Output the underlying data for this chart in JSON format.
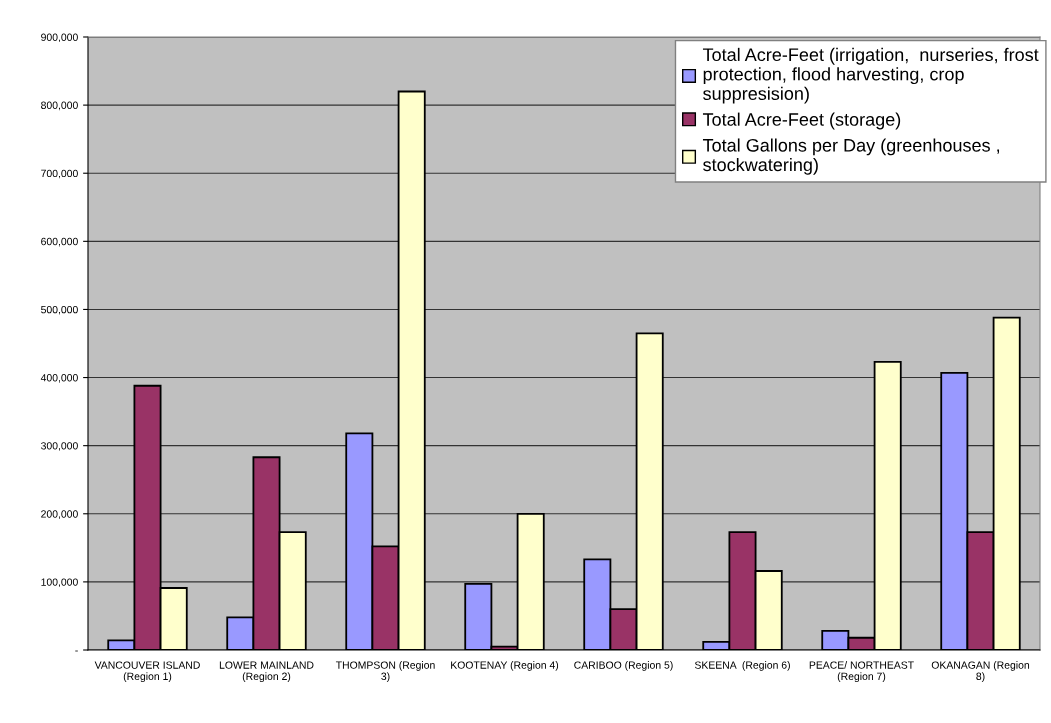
{
  "chart_data": {
    "type": "bar",
    "categories": [
      "VANCOUVER ISLAND\n(Region 1)",
      "LOWER MAINLAND\n(Region 2)",
      "THOMPSON (Region\n3)",
      "KOOTENAY (Region 4)",
      "CARIBOO (Region 5)",
      "SKEENA  (Region 6)",
      "PEACE/ NORTHEAST\n(Region 7)",
      "OKANAGAN (Region\n8)"
    ],
    "series": [
      {
        "name": "Total Acre-Feet (irrigation,  nurseries, frost\nprotection, flood harvesting, crop\nsuppresision)",
        "color": "#9999ff",
        "values": [
          14000,
          48000,
          318000,
          97000,
          133000,
          12000,
          28000,
          407000
        ]
      },
      {
        "name": "Total Acre-Feet (storage)",
        "color": "#993366",
        "values": [
          388000,
          283000,
          152000,
          5000,
          60000,
          173000,
          18000,
          173000
        ]
      },
      {
        "name": "Total Gallons per Day (greenhouses ,\nstockwatering)",
        "color": "#ffffcc",
        "values": [
          91000,
          173000,
          820000,
          200000,
          465000,
          116000,
          423000,
          488000
        ]
      }
    ],
    "ylim": [
      0,
      900000
    ],
    "yticks": [
      {
        "value": 0,
        "label": "-"
      },
      {
        "value": 100000,
        "label": "100,000"
      },
      {
        "value": 200000,
        "label": "200,000"
      },
      {
        "value": 300000,
        "label": "300,000"
      },
      {
        "value": 400000,
        "label": "400,000"
      },
      {
        "value": 500000,
        "label": "500,000"
      },
      {
        "value": 600000,
        "label": "600,000"
      },
      {
        "value": 700000,
        "label": "700,000"
      },
      {
        "value": 800000,
        "label": "800,000"
      },
      {
        "value": 900000,
        "label": "900,000"
      }
    ],
    "grid": "y",
    "legend": "top right"
  }
}
